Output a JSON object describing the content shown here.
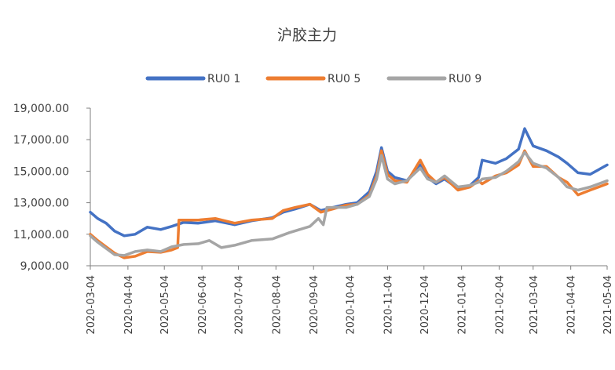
{
  "chart_data": {
    "type": "line",
    "title": "沪胶主力",
    "xlabel": "",
    "ylabel": "",
    "ylim": [
      9000,
      19000
    ],
    "y_ticks": [
      "19,000.00",
      "17,000.00",
      "15,000.00",
      "13,000.00",
      "11,000.00",
      "9,000.00"
    ],
    "y_tick_values": [
      19000,
      17000,
      15000,
      13000,
      11000,
      9000
    ],
    "x_ticks": [
      "2020-03-04",
      "2020-04-04",
      "2020-05-04",
      "2020-06-04",
      "2020-07-04",
      "2020-08-04",
      "2020-09-04",
      "2020-10-04",
      "2020-11-04",
      "2020-12-04",
      "2021-01-04",
      "2021-02-04",
      "2021-03-04",
      "2021-04-04",
      "2021-05-04"
    ],
    "legend_position": "top",
    "grid": false,
    "series": [
      {
        "name": "RU0 1",
        "color": "#4472C4",
        "points": [
          [
            "2020-03-04",
            12400
          ],
          [
            "2020-03-10",
            12000
          ],
          [
            "2020-03-17",
            11700
          ],
          [
            "2020-03-24",
            11200
          ],
          [
            "2020-04-01",
            10900
          ],
          [
            "2020-04-10",
            11000
          ],
          [
            "2020-04-20",
            11450
          ],
          [
            "2020-05-01",
            11300
          ],
          [
            "2020-05-10",
            11500
          ],
          [
            "2020-05-20",
            11750
          ],
          [
            "2020-06-01",
            11700
          ],
          [
            "2020-06-15",
            11850
          ],
          [
            "2020-07-01",
            11600
          ],
          [
            "2020-07-15",
            11850
          ],
          [
            "2020-08-01",
            12050
          ],
          [
            "2020-08-10",
            12400
          ],
          [
            "2020-08-20",
            12600
          ],
          [
            "2020-09-01",
            12900
          ],
          [
            "2020-09-10",
            12500
          ],
          [
            "2020-09-20",
            12700
          ],
          [
            "2020-10-01",
            12900
          ],
          [
            "2020-10-10",
            13000
          ],
          [
            "2020-10-20",
            13700
          ],
          [
            "2020-10-26",
            15000
          ],
          [
            "2020-10-30",
            16500
          ],
          [
            "2020-11-04",
            15000
          ],
          [
            "2020-11-10",
            14600
          ],
          [
            "2020-11-20",
            14400
          ],
          [
            "2020-12-01",
            15400
          ],
          [
            "2020-12-07",
            14600
          ],
          [
            "2020-12-14",
            14200
          ],
          [
            "2020-12-21",
            14500
          ],
          [
            "2021-01-01",
            13900
          ],
          [
            "2021-01-11",
            14100
          ],
          [
            "2021-01-18",
            14600
          ],
          [
            "2021-01-21",
            15700
          ],
          [
            "2021-02-01",
            15500
          ],
          [
            "2021-02-10",
            15800
          ],
          [
            "2021-02-20",
            16400
          ],
          [
            "2021-02-25",
            17700
          ],
          [
            "2021-03-04",
            16600
          ],
          [
            "2021-03-15",
            16300
          ],
          [
            "2021-03-25",
            15900
          ],
          [
            "2021-04-01",
            15500
          ],
          [
            "2021-04-10",
            14900
          ],
          [
            "2021-04-20",
            14800
          ],
          [
            "2021-05-04",
            15400
          ]
        ]
      },
      {
        "name": "RU0 5",
        "color": "#ED7D31",
        "points": [
          [
            "2020-03-04",
            11000
          ],
          [
            "2020-03-10",
            10600
          ],
          [
            "2020-03-17",
            10200
          ],
          [
            "2020-03-24",
            9800
          ],
          [
            "2020-04-01",
            9500
          ],
          [
            "2020-04-10",
            9600
          ],
          [
            "2020-04-20",
            9900
          ],
          [
            "2020-05-01",
            9850
          ],
          [
            "2020-05-10",
            10000
          ],
          [
            "2020-05-15",
            10150
          ],
          [
            "2020-05-16",
            11900
          ],
          [
            "2020-06-01",
            11900
          ],
          [
            "2020-06-15",
            12000
          ],
          [
            "2020-07-01",
            11700
          ],
          [
            "2020-07-15",
            11900
          ],
          [
            "2020-08-01",
            12000
          ],
          [
            "2020-08-10",
            12500
          ],
          [
            "2020-08-20",
            12700
          ],
          [
            "2020-09-01",
            12900
          ],
          [
            "2020-09-10",
            12400
          ],
          [
            "2020-09-20",
            12600
          ],
          [
            "2020-10-01",
            12850
          ],
          [
            "2020-10-10",
            12900
          ],
          [
            "2020-10-20",
            13500
          ],
          [
            "2020-10-26",
            14700
          ],
          [
            "2020-10-30",
            16300
          ],
          [
            "2020-11-04",
            14800
          ],
          [
            "2020-11-10",
            14400
          ],
          [
            "2020-11-20",
            14300
          ],
          [
            "2020-12-01",
            15700
          ],
          [
            "2020-12-07",
            14800
          ],
          [
            "2020-12-14",
            14300
          ],
          [
            "2020-12-21",
            14600
          ],
          [
            "2021-01-01",
            13800
          ],
          [
            "2021-01-11",
            14000
          ],
          [
            "2021-01-18",
            14400
          ],
          [
            "2021-01-21",
            14200
          ],
          [
            "2021-02-01",
            14700
          ],
          [
            "2021-02-10",
            14900
          ],
          [
            "2021-02-20",
            15400
          ],
          [
            "2021-02-25",
            16300
          ],
          [
            "2021-03-04",
            15300
          ],
          [
            "2021-03-15",
            15300
          ],
          [
            "2021-03-25",
            14600
          ],
          [
            "2021-04-01",
            14300
          ],
          [
            "2021-04-10",
            13500
          ],
          [
            "2021-04-20",
            13800
          ],
          [
            "2021-05-04",
            14200
          ]
        ]
      },
      {
        "name": "RU0 9",
        "color": "#A5A5A5",
        "points": [
          [
            "2020-03-04",
            10900
          ],
          [
            "2020-03-10",
            10500
          ],
          [
            "2020-03-17",
            10100
          ],
          [
            "2020-03-24",
            9700
          ],
          [
            "2020-04-01",
            9650
          ],
          [
            "2020-04-10",
            9900
          ],
          [
            "2020-04-20",
            10000
          ],
          [
            "2020-05-01",
            9900
          ],
          [
            "2020-05-10",
            10200
          ],
          [
            "2020-05-20",
            10350
          ],
          [
            "2020-06-01",
            10400
          ],
          [
            "2020-06-10",
            10600
          ],
          [
            "2020-06-20",
            10150
          ],
          [
            "2020-07-01",
            10300
          ],
          [
            "2020-07-15",
            10600
          ],
          [
            "2020-08-01",
            10700
          ],
          [
            "2020-08-15",
            11100
          ],
          [
            "2020-09-01",
            11500
          ],
          [
            "2020-09-08",
            12000
          ],
          [
            "2020-09-12",
            11600
          ],
          [
            "2020-09-15",
            12700
          ],
          [
            "2020-10-01",
            12700
          ],
          [
            "2020-10-10",
            12900
          ],
          [
            "2020-10-20",
            13400
          ],
          [
            "2020-10-26",
            14500
          ],
          [
            "2020-10-30",
            16000
          ],
          [
            "2020-11-04",
            14500
          ],
          [
            "2020-11-10",
            14200
          ],
          [
            "2020-11-20",
            14400
          ],
          [
            "2020-12-01",
            15200
          ],
          [
            "2020-12-07",
            14500
          ],
          [
            "2020-12-14",
            14300
          ],
          [
            "2020-12-21",
            14700
          ],
          [
            "2021-01-01",
            14000
          ],
          [
            "2021-01-11",
            14100
          ],
          [
            "2021-01-18",
            14300
          ],
          [
            "2021-01-21",
            14500
          ],
          [
            "2021-02-01",
            14600
          ],
          [
            "2021-02-10",
            15000
          ],
          [
            "2021-02-20",
            15600
          ],
          [
            "2021-02-25",
            16200
          ],
          [
            "2021-03-04",
            15500
          ],
          [
            "2021-03-15",
            15200
          ],
          [
            "2021-03-25",
            14600
          ],
          [
            "2021-04-01",
            14000
          ],
          [
            "2021-04-10",
            13800
          ],
          [
            "2021-04-20",
            14000
          ],
          [
            "2021-05-04",
            14400
          ]
        ]
      }
    ]
  }
}
